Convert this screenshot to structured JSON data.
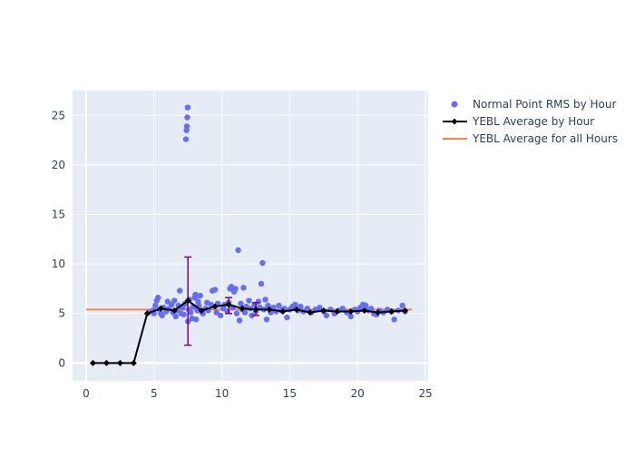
{
  "chart_data": {
    "type": "scatter",
    "title": "",
    "xlabel": "",
    "ylabel": "",
    "xlim": [
      -1,
      25.2
    ],
    "ylim": [
      -1.8,
      27.5
    ],
    "x_ticks": [
      0,
      5,
      10,
      15,
      20,
      25
    ],
    "x_tick_labels": [
      "0",
      "5",
      "10",
      "15",
      "20",
      "25"
    ],
    "y_ticks": [
      0,
      5,
      10,
      15,
      20,
      25
    ],
    "y_tick_labels": [
      "0",
      "5",
      "10",
      "15",
      "20",
      "25"
    ],
    "grid": true,
    "legend_placement": "right",
    "colors": {
      "plot_bg": "#E5ECF6",
      "points": "#636EFA",
      "avg_line": "#000000",
      "error_bar": "#800080",
      "overall_line": "#FF7F50",
      "axis_text": "#2a3f5f"
    },
    "series": [
      {
        "name": "Normal Point RMS by Hour",
        "kind": "scatter",
        "points": [
          [
            4.6,
            5.1
          ],
          [
            4.9,
            5.3
          ],
          [
            5.0,
            5.0
          ],
          [
            5.1,
            5.8
          ],
          [
            5.2,
            6.3
          ],
          [
            5.3,
            6.6
          ],
          [
            5.4,
            5.4
          ],
          [
            5.5,
            5.0
          ],
          [
            5.6,
            4.8
          ],
          [
            5.7,
            5.6
          ],
          [
            5.9,
            5.2
          ],
          [
            6.0,
            6.2
          ],
          [
            6.1,
            5.5
          ],
          [
            6.3,
            5.9
          ],
          [
            6.4,
            5.1
          ],
          [
            6.5,
            6.3
          ],
          [
            6.6,
            4.7
          ],
          [
            6.7,
            5.3
          ],
          [
            6.8,
            5.8
          ],
          [
            6.9,
            7.3
          ],
          [
            7.0,
            5.0
          ],
          [
            7.1,
            5.6
          ],
          [
            7.2,
            4.9
          ],
          [
            7.3,
            6.0
          ],
          [
            7.35,
            22.6
          ],
          [
            7.4,
            23.5
          ],
          [
            7.42,
            23.9
          ],
          [
            7.45,
            24.8
          ],
          [
            7.48,
            25.8
          ],
          [
            7.5,
            4.2
          ],
          [
            7.55,
            5.4
          ],
          [
            7.6,
            6.4
          ],
          [
            7.7,
            5.1
          ],
          [
            7.8,
            4.5
          ],
          [
            7.9,
            5.7
          ],
          [
            8.0,
            6.6
          ],
          [
            8.05,
            6.9
          ],
          [
            8.1,
            4.4
          ],
          [
            8.2,
            5.3
          ],
          [
            8.25,
            6.2
          ],
          [
            8.3,
            5.8
          ],
          [
            8.4,
            6.8
          ],
          [
            8.5,
            5.2
          ],
          [
            8.6,
            5.0
          ],
          [
            8.8,
            5.5
          ],
          [
            8.9,
            6.1
          ],
          [
            9.0,
            5.3
          ],
          [
            9.2,
            5.9
          ],
          [
            9.3,
            7.3
          ],
          [
            9.5,
            7.4
          ],
          [
            9.6,
            5.1
          ],
          [
            9.7,
            6.0
          ],
          [
            9.9,
            4.8
          ],
          [
            10.1,
            5.5
          ],
          [
            10.2,
            5.9
          ],
          [
            10.4,
            5.2
          ],
          [
            10.5,
            6.1
          ],
          [
            10.6,
            7.5
          ],
          [
            10.7,
            7.7
          ],
          [
            10.8,
            5.6
          ],
          [
            10.9,
            7.2
          ],
          [
            11.0,
            7.5
          ],
          [
            11.1,
            5.0
          ],
          [
            11.2,
            11.4
          ],
          [
            11.3,
            4.3
          ],
          [
            11.4,
            6.0
          ],
          [
            11.5,
            5.4
          ],
          [
            11.6,
            7.6
          ],
          [
            11.7,
            5.1
          ],
          [
            11.8,
            5.7
          ],
          [
            12.0,
            6.3
          ],
          [
            12.1,
            5.5
          ],
          [
            12.2,
            4.8
          ],
          [
            12.4,
            5.9
          ],
          [
            12.5,
            5.2
          ],
          [
            12.7,
            6.2
          ],
          [
            12.8,
            5.6
          ],
          [
            12.9,
            8.0
          ],
          [
            13.0,
            10.1
          ],
          [
            13.1,
            5.4
          ],
          [
            13.2,
            6.4
          ],
          [
            13.3,
            4.4
          ],
          [
            13.4,
            5.8
          ],
          [
            13.6,
            5.1
          ],
          [
            13.8,
            5.6
          ],
          [
            14.0,
            5.2
          ],
          [
            14.2,
            5.8
          ],
          [
            14.4,
            5.3
          ],
          [
            14.6,
            5.5
          ],
          [
            14.8,
            4.6
          ],
          [
            15.0,
            5.4
          ],
          [
            15.2,
            5.7
          ],
          [
            15.4,
            5.9
          ],
          [
            15.6,
            5.3
          ],
          [
            15.8,
            5.7
          ],
          [
            16.0,
            5.2
          ],
          [
            16.3,
            5.5
          ],
          [
            16.6,
            5.1
          ],
          [
            16.9,
            5.4
          ],
          [
            17.2,
            5.6
          ],
          [
            17.5,
            5.2
          ],
          [
            17.7,
            4.8
          ],
          [
            18.0,
            5.4
          ],
          [
            18.3,
            5.0
          ],
          [
            18.6,
            5.3
          ],
          [
            18.9,
            5.5
          ],
          [
            19.2,
            5.1
          ],
          [
            19.5,
            4.7
          ],
          [
            19.8,
            5.4
          ],
          [
            20.0,
            5.2
          ],
          [
            20.2,
            5.6
          ],
          [
            20.4,
            5.9
          ],
          [
            20.6,
            5.8
          ],
          [
            20.8,
            5.3
          ],
          [
            21.0,
            5.5
          ],
          [
            21.2,
            5.0
          ],
          [
            21.4,
            4.9
          ],
          [
            21.6,
            5.3
          ],
          [
            21.9,
            5.1
          ],
          [
            22.2,
            5.4
          ],
          [
            22.5,
            5.2
          ],
          [
            22.7,
            4.4
          ],
          [
            23.0,
            5.3
          ],
          [
            23.3,
            5.8
          ],
          [
            23.5,
            5.2
          ]
        ]
      },
      {
        "name": "YEBL Average by Hour",
        "kind": "line",
        "x": [
          0.5,
          1.5,
          2.5,
          3.5,
          4.5,
          5.5,
          6.5,
          7.5,
          8.5,
          9.5,
          10.5,
          11.5,
          12.5,
          13.5,
          14.5,
          15.5,
          16.5,
          17.5,
          18.5,
          19.5,
          20.5,
          21.5,
          22.5,
          23.5
        ],
        "values": [
          0,
          0,
          0,
          0,
          5.0,
          5.5,
          5.3,
          6.3,
          5.3,
          5.7,
          5.9,
          5.5,
          5.4,
          5.4,
          5.2,
          5.4,
          5.1,
          5.3,
          5.2,
          5.2,
          5.3,
          5.1,
          5.2,
          5.3
        ],
        "error_bars": [
          {
            "x": 7.5,
            "low": 1.8,
            "high": 10.7
          },
          {
            "x": 10.5,
            "low": 5.0,
            "high": 6.6
          },
          {
            "x": 12.5,
            "low": 4.8,
            "high": 6.1
          }
        ]
      },
      {
        "name": "YEBL Average for all Hours",
        "kind": "hline",
        "x": [
          0,
          24
        ],
        "values": [
          5.4,
          5.4
        ]
      }
    ]
  }
}
